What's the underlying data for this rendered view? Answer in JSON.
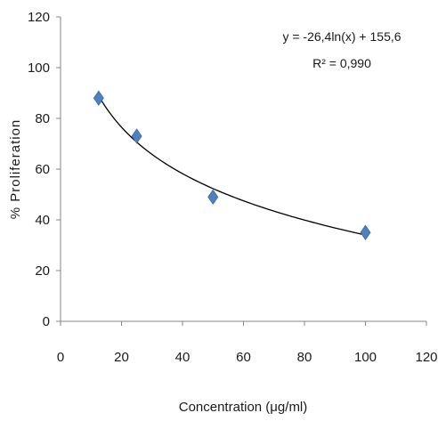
{
  "chart_data": {
    "type": "scatter",
    "xlabel": "Concentration (μg/ml)",
    "ylabel": "% Proliferation",
    "xlim": [
      0,
      120
    ],
    "ylim": [
      0,
      120
    ],
    "xticks": [
      0,
      20,
      40,
      60,
      80,
      100,
      120
    ],
    "yticks": [
      0,
      20,
      40,
      60,
      80,
      100,
      120
    ],
    "grid": false,
    "legend": "none",
    "series": [
      {
        "marker": "diamond",
        "color": "#4f81bd",
        "points": [
          {
            "x": 12.5,
            "y": 88
          },
          {
            "x": 25,
            "y": 73
          },
          {
            "x": 50,
            "y": 49
          },
          {
            "x": 100,
            "y": 35
          }
        ]
      }
    ],
    "trendline": {
      "type": "logarithmic",
      "a": -26.4,
      "b": 155.6,
      "x_range": [
        12.5,
        100
      ],
      "color": "#000000"
    },
    "annotations": {
      "equation": "y = -26,4ln(x) + 155,6",
      "r2": "R² = 0,990"
    }
  }
}
